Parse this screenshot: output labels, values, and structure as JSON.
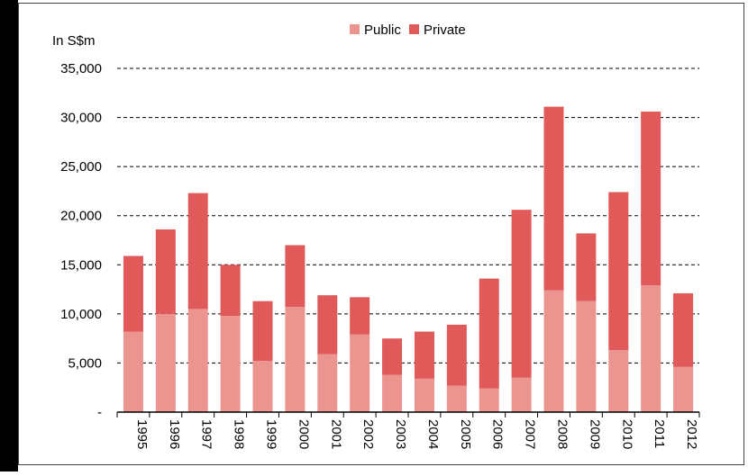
{
  "chart_data": {
    "type": "bar",
    "stacked": true,
    "title": "",
    "ylabel": "In S$m",
    "xlabel": "",
    "ylim": [
      0,
      35000
    ],
    "yticks": [
      0,
      5000,
      10000,
      15000,
      20000,
      25000,
      30000,
      35000
    ],
    "ytick_labels": [
      "-",
      "5,000",
      "10,000",
      "15,000",
      "20,000",
      "25,000",
      "30,000",
      "35,000"
    ],
    "grid": "horizontal dashed",
    "legend_position": "top-center",
    "categories": [
      "1995",
      "1996",
      "1997",
      "1998",
      "1999",
      "2000",
      "2001",
      "2002",
      "2003",
      "2004",
      "2005",
      "2006",
      "2007",
      "2008",
      "2009",
      "2010",
      "2011",
      "2012"
    ],
    "series": [
      {
        "name": "Public",
        "color": "#EC9590",
        "values": [
          8200,
          10000,
          10500,
          9800,
          5200,
          10700,
          5900,
          7900,
          3800,
          3400,
          2700,
          2400,
          3500,
          12400,
          11300,
          6300,
          12900,
          4600
        ]
      },
      {
        "name": "Private",
        "color": "#E05A5A",
        "values": [
          7700,
          8600,
          11800,
          5200,
          6100,
          6300,
          6000,
          3800,
          3700,
          4800,
          6200,
          11200,
          17100,
          18700,
          6900,
          16100,
          17700,
          7500
        ]
      }
    ]
  }
}
